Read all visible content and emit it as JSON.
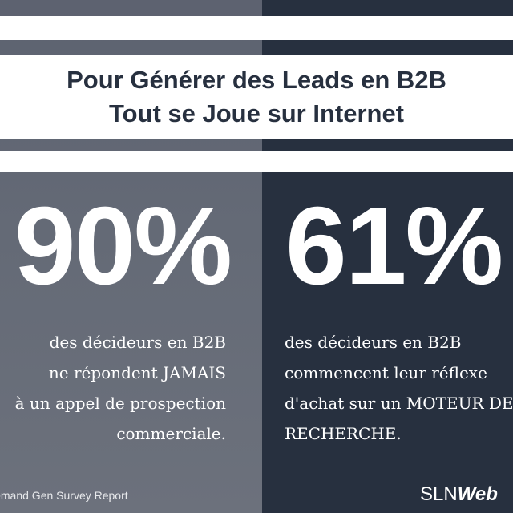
{
  "header": {
    "title_line1": "Pour Générer des Leads en B2B",
    "title_line2": "Tout se Joue sur Internet"
  },
  "stats": [
    {
      "value": "90%",
      "lines": [
        "des décideurs en B2B",
        "ne répondent JAMAIS",
        "à un appel de prospection",
        "commerciale."
      ]
    },
    {
      "value": "61%",
      "lines": [
        "des décideurs en B2B",
        "commencent leur réflexe",
        "d'achat sur un MOTEUR DE",
        "RECHERCHE."
      ]
    }
  ],
  "footer": {
    "source": "Demand Gen Survey Report",
    "brand_light": "SLN",
    "brand_bold": "Web"
  },
  "colors": {
    "left_panel": "#646a76",
    "right_panel": "#27303f",
    "title_text": "#27303f",
    "white": "#ffffff"
  }
}
